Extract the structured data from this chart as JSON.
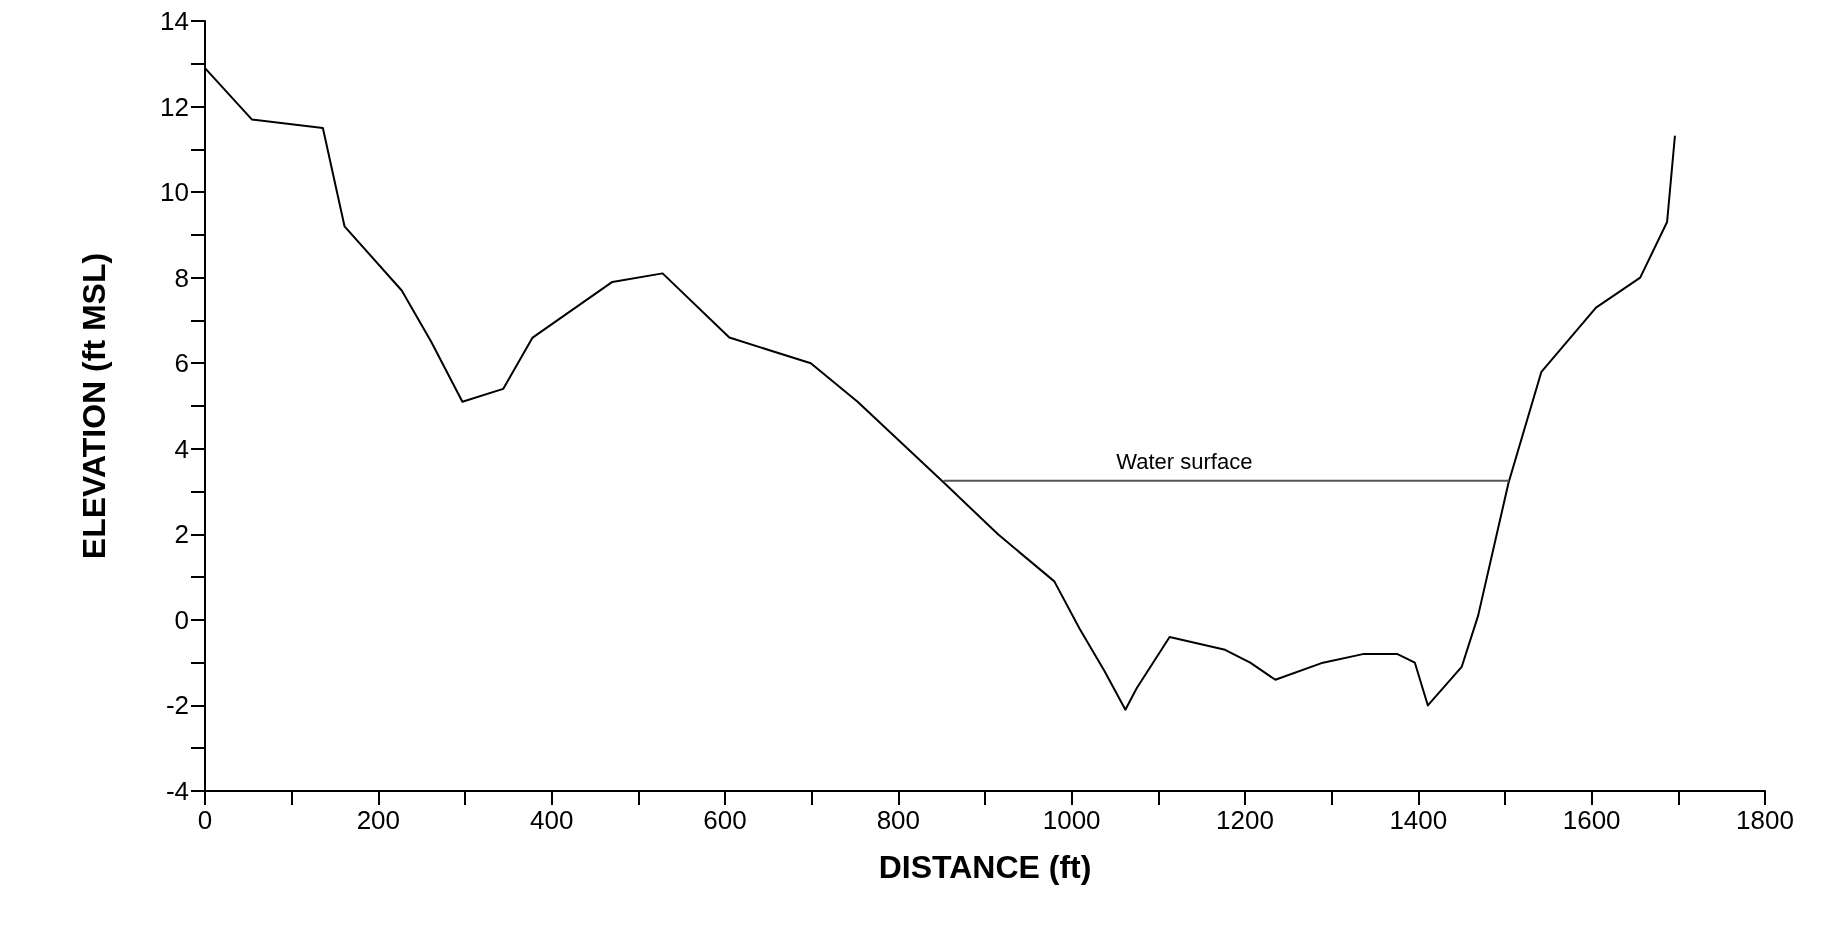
{
  "chart_data": {
    "type": "line",
    "xlabel": "DISTANCE (ft)",
    "ylabel": "ELEVATION (ft MSL)",
    "series": [
      {
        "color": "#000000",
        "x": [
          0,
          54,
          136,
          161,
          227,
          261,
          297,
          344,
          378,
          470,
          528,
          605,
          699,
          753,
          853,
          915,
          980,
          1009,
          1038,
          1062,
          1075,
          1113,
          1177,
          1206,
          1235,
          1290,
          1336,
          1376,
          1396,
          1411,
          1450,
          1469,
          1504,
          1542,
          1605,
          1656,
          1687,
          1696
        ],
        "values": [
          12.9,
          11.7,
          11.5,
          9.2,
          7.7,
          6.5,
          5.1,
          5.4,
          6.6,
          7.9,
          8.1,
          6.6,
          6.0,
          5.1,
          3.2,
          2.0,
          0.9,
          -0.2,
          -1.2,
          -2.1,
          -1.6,
          -0.4,
          -0.7,
          -1.0,
          -1.4,
          -1.0,
          -0.8,
          -0.8,
          -1.0,
          -2.0,
          -1.1,
          0.1,
          3.2,
          5.8,
          7.3,
          8.0,
          9.3,
          11.3
        ]
      },
      {
        "color": "#555555",
        "x": [
          853,
          1504
        ],
        "values": [
          3.25,
          3.25
        ]
      }
    ],
    "annotations": [
      {
        "text": "Water surface",
        "x": 1130,
        "y": 3.3
      }
    ],
    "xlim": [
      0,
      1800
    ],
    "xticks": [
      0,
      {
        "value": 100,
        "label": null
      },
      200,
      {
        "value": 300,
        "label": null
      },
      400,
      {
        "value": 500,
        "label": null
      },
      600,
      {
        "value": 700,
        "label": null
      },
      800,
      {
        "value": 900,
        "label": null
      },
      1000,
      {
        "value": 1100,
        "label": null
      },
      1200,
      {
        "value": 1300,
        "label": null
      },
      1400,
      {
        "value": 1500,
        "label": null
      },
      1600,
      {
        "value": 1700,
        "label": null
      },
      1800
    ],
    "ylim": [
      -4,
      14
    ],
    "yticks": [
      -4,
      {
        "value": -3,
        "label": null
      },
      -2,
      {
        "value": -1,
        "label": null
      },
      0,
      {
        "value": 1,
        "label": null
      },
      2,
      {
        "value": 3,
        "label": null
      },
      4,
      {
        "value": 5,
        "label": null
      },
      6,
      {
        "value": 7,
        "label": null
      },
      8,
      {
        "value": 9,
        "label": null
      },
      10,
      {
        "value": 11,
        "label": null
      },
      12,
      {
        "value": 13,
        "label": null
      },
      14
    ],
    "grid": false,
    "marker": "none",
    "line_style": "solid"
  }
}
